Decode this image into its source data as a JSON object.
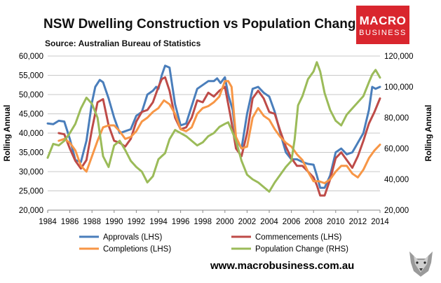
{
  "chart_data": {
    "type": "line",
    "title": "NSW Dwelling Construction vs Population Change",
    "subtitle": "Source: Australian Bureau of Statistics",
    "ylabel": "Rolling Annual",
    "y2label": "Rolling Annual",
    "ylim": [
      20000,
      60000
    ],
    "y2lim": [
      20000,
      120000
    ],
    "y_ticks": [
      "20,000",
      "25,000",
      "30,000",
      "35,000",
      "40,000",
      "45,000",
      "50,000",
      "55,000",
      "60,000"
    ],
    "y2_ticks": [
      "20,000",
      "40,000",
      "60,000",
      "80,000",
      "100,000",
      "120,000"
    ],
    "y_tick_values": [
      20000,
      25000,
      30000,
      35000,
      40000,
      45000,
      50000,
      55000,
      60000
    ],
    "y2_tick_values": [
      20000,
      40000,
      60000,
      80000,
      100000,
      120000
    ],
    "xlim": [
      1984,
      2014
    ],
    "x_ticks": [
      "1984",
      "1986",
      "1988",
      "1990",
      "1992",
      "1994",
      "1996",
      "1998",
      "2000",
      "2002",
      "2004",
      "2006",
      "2008",
      "2010",
      "2012",
      "2014"
    ],
    "x_tick_values": [
      1984,
      1986,
      1988,
      1990,
      1992,
      1994,
      1996,
      1998,
      2000,
      2002,
      2004,
      2006,
      2008,
      2010,
      2012,
      2014
    ],
    "grid": true,
    "legend_position": "bottom",
    "series": [
      {
        "name": "Approvals (LHS)",
        "axis": "left",
        "color": "#4a7ebb",
        "x": [
          1984.0,
          1984.5,
          1985.0,
          1985.5,
          1986.0,
          1986.5,
          1987.0,
          1987.5,
          1988.0,
          1988.3,
          1988.7,
          1989.0,
          1989.5,
          1990.0,
          1990.5,
          1991.0,
          1991.5,
          1992.0,
          1992.5,
          1993.0,
          1993.5,
          1993.8,
          1994.0,
          1994.3,
          1994.6,
          1995.0,
          1995.5,
          1996.0,
          1996.5,
          1997.0,
          1997.5,
          1998.0,
          1998.5,
          1999.0,
          1999.3,
          1999.6,
          2000.0,
          2000.3,
          2000.7,
          2001.0,
          2001.5,
          2002.0,
          2002.5,
          2003.0,
          2003.5,
          2004.0,
          2004.5,
          2005.0,
          2005.5,
          2006.0,
          2006.5,
          2007.0,
          2007.5,
          2008.0,
          2008.3,
          2008.6,
          2009.0,
          2009.5,
          2010.0,
          2010.5,
          2011.0,
          2011.5,
          2012.0,
          2012.5,
          2013.0,
          2013.3,
          2013.6,
          2014.0
        ],
        "values": [
          42500,
          42300,
          43200,
          43000,
          38500,
          33000,
          32500,
          38000,
          48000,
          52000,
          53800,
          53200,
          49000,
          44000,
          40000,
          40500,
          41000,
          44500,
          45500,
          50000,
          51000,
          52000,
          51500,
          55000,
          57500,
          57000,
          47500,
          42000,
          42500,
          47000,
          51500,
          52500,
          53500,
          53500,
          54200,
          53000,
          54500,
          50000,
          46000,
          38500,
          36000,
          45000,
          51500,
          52000,
          50500,
          49500,
          45500,
          40000,
          35000,
          33200,
          33200,
          32500,
          32000,
          31800,
          29000,
          25800,
          25800,
          29000,
          35000,
          36000,
          34500,
          35000,
          37500,
          40000,
          46000,
          52000,
          51500,
          52000
        ]
      },
      {
        "name": "Commencements (LHS)",
        "axis": "left",
        "color": "#be4b48",
        "x": [
          1985.0,
          1985.5,
          1986.0,
          1986.5,
          1987.0,
          1987.5,
          1988.0,
          1988.5,
          1989.0,
          1989.5,
          1990.0,
          1990.5,
          1991.0,
          1991.5,
          1992.0,
          1992.5,
          1993.0,
          1993.5,
          1994.0,
          1994.3,
          1994.6,
          1995.0,
          1995.5,
          1996.0,
          1996.5,
          1997.0,
          1997.5,
          1998.0,
          1998.5,
          1999.0,
          1999.5,
          2000.0,
          2000.5,
          2001.0,
          2001.5,
          2002.0,
          2002.5,
          2003.0,
          2003.5,
          2004.0,
          2004.5,
          2005.0,
          2005.5,
          2006.0,
          2006.5,
          2007.0,
          2007.5,
          2008.0,
          2008.3,
          2008.6,
          2009.0,
          2009.5,
          2010.0,
          2010.5,
          2011.0,
          2011.5,
          2012.0,
          2012.5,
          2013.0,
          2013.5,
          2014.0
        ],
        "values": [
          40000,
          39700,
          36000,
          32800,
          30800,
          33000,
          41000,
          48000,
          48800,
          42000,
          38000,
          37500,
          36500,
          38500,
          43000,
          45500,
          46000,
          48000,
          52000,
          54000,
          54500,
          51000,
          44000,
          41000,
          41500,
          44000,
          48500,
          48000,
          50500,
          49500,
          51000,
          52000,
          44500,
          36000,
          34000,
          40000,
          49000,
          51000,
          49000,
          45500,
          45000,
          40500,
          36500,
          33500,
          31500,
          31500,
          30000,
          28500,
          26500,
          23800,
          23800,
          28000,
          33500,
          35000,
          33000,
          31000,
          34000,
          38000,
          42500,
          45500,
          49000
        ]
      },
      {
        "name": "Completions (LHS)",
        "axis": "left",
        "color": "#f79646",
        "x": [
          1985.0,
          1985.5,
          1986.0,
          1986.5,
          1987.0,
          1987.5,
          1988.0,
          1988.5,
          1989.0,
          1989.5,
          1990.0,
          1990.5,
          1991.0,
          1991.5,
          1992.0,
          1992.5,
          1993.0,
          1993.5,
          1994.0,
          1994.5,
          1995.0,
          1995.5,
          1996.0,
          1996.5,
          1997.0,
          1997.5,
          1998.0,
          1998.5,
          1999.0,
          1999.5,
          2000.0,
          2000.3,
          2000.6,
          2001.0,
          2001.5,
          2002.0,
          2002.5,
          2003.0,
          2003.5,
          2004.0,
          2004.5,
          2005.0,
          2005.5,
          2006.0,
          2006.5,
          2007.0,
          2007.5,
          2008.0,
          2008.5,
          2009.0,
          2009.5,
          2010.0,
          2010.5,
          2011.0,
          2011.5,
          2012.0,
          2012.5,
          2013.0,
          2013.5,
          2014.0
        ],
        "values": [
          38000,
          38500,
          37500,
          35500,
          31500,
          30000,
          34000,
          38000,
          41500,
          42000,
          42000,
          40500,
          38500,
          39000,
          40500,
          43000,
          44000,
          45500,
          46500,
          48500,
          47500,
          45000,
          41000,
          40500,
          41500,
          45000,
          46500,
          47000,
          48000,
          49500,
          53500,
          53500,
          52000,
          39000,
          36000,
          36500,
          44000,
          46500,
          44500,
          43500,
          41000,
          39000,
          37500,
          36500,
          34500,
          33000,
          30000,
          27500,
          27500,
          27000,
          28000,
          30000,
          31500,
          31500,
          29500,
          28500,
          30500,
          33500,
          35500,
          37000
        ]
      },
      {
        "name": "Population Change (RHS)",
        "axis": "right",
        "color": "#9bbb59",
        "x": [
          1984.0,
          1984.5,
          1985.0,
          1985.5,
          1986.0,
          1986.5,
          1987.0,
          1987.5,
          1988.0,
          1988.5,
          1989.0,
          1989.5,
          1990.0,
          1990.5,
          1991.0,
          1991.5,
          1992.0,
          1992.5,
          1993.0,
          1993.5,
          1994.0,
          1994.3,
          1994.6,
          1995.0,
          1995.5,
          1996.0,
          1996.5,
          1997.0,
          1997.5,
          1998.0,
          1998.5,
          1999.0,
          1999.5,
          2000.0,
          2000.3,
          2000.6,
          2001.0,
          2001.5,
          2002.0,
          2002.5,
          2003.0,
          2003.5,
          2004.0,
          2004.5,
          2005.0,
          2005.5,
          2006.0,
          2006.3,
          2006.6,
          2007.0,
          2007.5,
          2008.0,
          2008.3,
          2008.6,
          2009.0,
          2009.5,
          2010.0,
          2010.5,
          2011.0,
          2011.5,
          2012.0,
          2012.5,
          2013.0,
          2013.3,
          2013.6,
          2014.0
        ],
        "values": [
          54000,
          63000,
          62000,
          65000,
          70000,
          76000,
          86000,
          93000,
          89000,
          80000,
          55000,
          48000,
          62000,
          65000,
          59000,
          52000,
          48000,
          45000,
          38000,
          42000,
          53000,
          55000,
          57000,
          66000,
          72000,
          70000,
          68000,
          65000,
          62000,
          64000,
          68000,
          70000,
          74000,
          76000,
          77000,
          72000,
          65000,
          52000,
          43000,
          40000,
          38000,
          35000,
          32000,
          38000,
          43000,
          48000,
          52000,
          66000,
          88000,
          94000,
          105000,
          110000,
          116000,
          110000,
          96000,
          85000,
          78000,
          75000,
          82000,
          86000,
          90000,
          94000,
          103000,
          108000,
          111000,
          106000
        ]
      }
    ]
  },
  "branding": {
    "logo_top": "MACRO",
    "logo_bottom": "BUSINESS",
    "website": "www.macrobusiness.com.au"
  }
}
